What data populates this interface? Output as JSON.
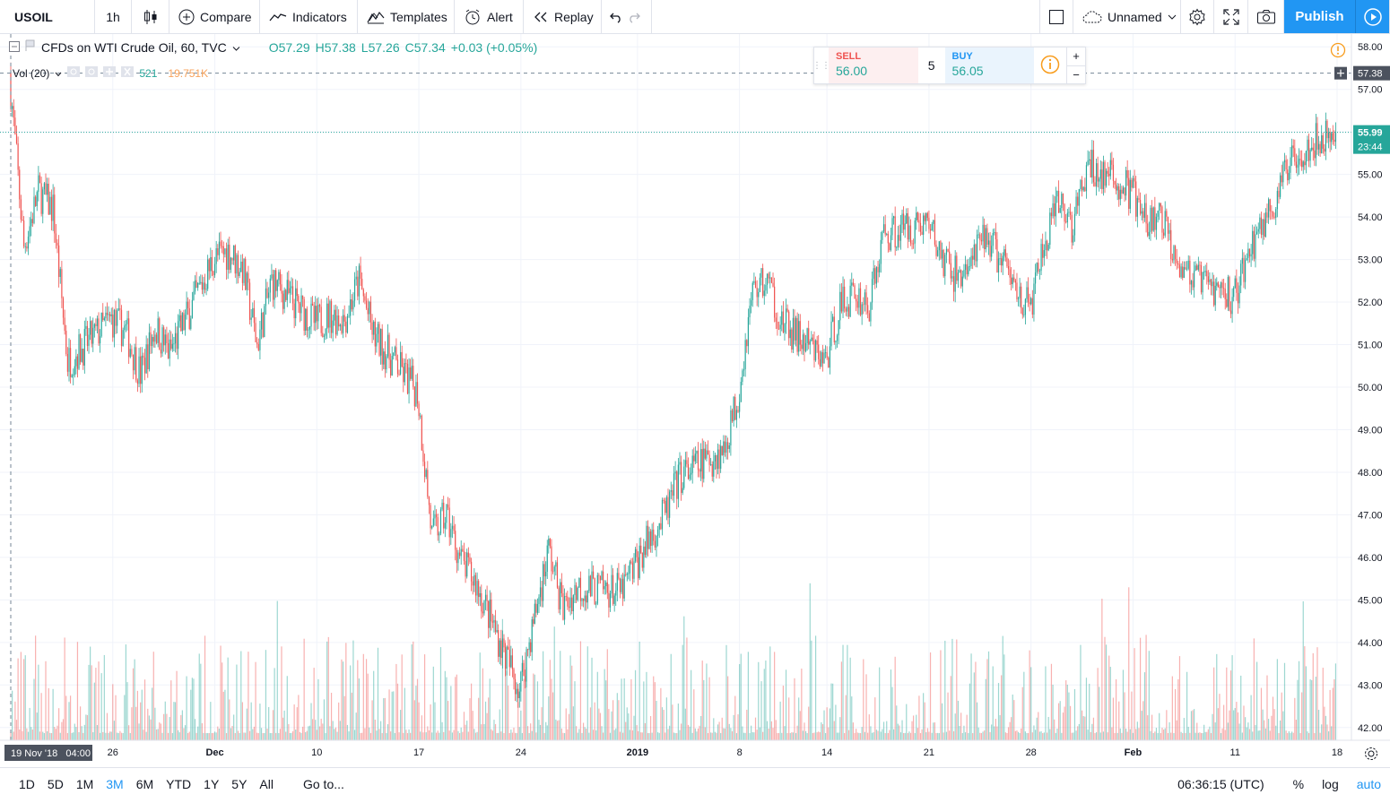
{
  "toolbar": {
    "symbol": "USOIL",
    "interval": "1h",
    "compare": "Compare",
    "indicators": "Indicators",
    "templates": "Templates",
    "alert": "Alert",
    "replay": "Replay",
    "layout_name": "Unnamed",
    "publish": "Publish"
  },
  "legend": {
    "title": "CFDs on WTI Crude Oil, 60, TVC",
    "open": "O57.29",
    "high": "H57.38",
    "low": "L57.26",
    "close": "C57.34",
    "change": "+0.03 (+0.05%)"
  },
  "volume_legend": {
    "name": "Vol (20)",
    "value1": "521",
    "value2": "19.751K"
  },
  "trade_panel": {
    "sell_label": "SELL",
    "sell_price": "56.00",
    "quantity": "5",
    "buy_label": "BUY",
    "buy_price": "56.05",
    "plus": "+",
    "minus": "−"
  },
  "price_axis": {
    "ticks": [
      "58.00",
      "57.00",
      "56.00",
      "55.00",
      "54.00",
      "53.00",
      "52.00",
      "51.00",
      "50.00",
      "49.00",
      "48.00",
      "47.00",
      "46.00",
      "45.00",
      "44.00",
      "43.00",
      "42.00"
    ],
    "crosshair_label": "57.38",
    "last_price_label": "55.99",
    "countdown_label": "23:44"
  },
  "time_axis": {
    "ticks": [
      "26",
      "Dec",
      "10",
      "17",
      "24",
      "2019",
      "8",
      "14",
      "21",
      "28",
      "Feb",
      "11",
      "18"
    ],
    "crosshair_label": "19 Nov '18   04:00"
  },
  "bottom_bar": {
    "ranges": [
      "1D",
      "5D",
      "1M",
      "3M",
      "6M",
      "YTD",
      "1Y",
      "5Y",
      "All"
    ],
    "active_range": "3M",
    "goto": "Go to...",
    "clock": "06:36:15 (UTC)",
    "percent": "%",
    "log": "log",
    "auto": "auto"
  },
  "colors": {
    "up": "#26a69a",
    "down": "#ef5350",
    "accent": "#2196f3",
    "grid": "#f0f3fa"
  },
  "chart_data": {
    "type": "candlestick",
    "title": "CFDs on WTI Crude Oil, 60, TVC",
    "interval": "60",
    "ylim": [
      41.7,
      58.3
    ],
    "x_labels": [
      "26",
      "Dec",
      "10",
      "17",
      "24",
      "2019",
      "8",
      "14",
      "21",
      "28",
      "Feb",
      "11",
      "18"
    ],
    "approx_close_path": [
      {
        "date": "2018-11-19",
        "price": 57.4
      },
      {
        "date": "2018-11-20",
        "price": 53.3
      },
      {
        "date": "2018-11-21",
        "price": 54.6
      },
      {
        "date": "2018-11-22",
        "price": 54.2
      },
      {
        "date": "2018-11-23",
        "price": 50.6
      },
      {
        "date": "2018-11-26",
        "price": 51.6
      },
      {
        "date": "2018-11-27",
        "price": 51.3
      },
      {
        "date": "2018-11-28",
        "price": 50.3
      },
      {
        "date": "2018-11-29",
        "price": 51.4
      },
      {
        "date": "2018-11-30",
        "price": 50.8
      },
      {
        "date": "2018-12-03",
        "price": 53.0
      },
      {
        "date": "2018-12-04",
        "price": 53.2
      },
      {
        "date": "2018-12-05",
        "price": 52.8
      },
      {
        "date": "2018-12-06",
        "price": 51.0
      },
      {
        "date": "2018-12-07",
        "price": 52.5
      },
      {
        "date": "2018-12-10",
        "price": 51.5
      },
      {
        "date": "2018-12-11",
        "price": 51.7
      },
      {
        "date": "2018-12-12",
        "price": 51.6
      },
      {
        "date": "2018-12-13",
        "price": 52.5
      },
      {
        "date": "2018-12-14",
        "price": 51.2
      },
      {
        "date": "2018-12-17",
        "price": 49.9
      },
      {
        "date": "2018-12-18",
        "price": 46.5
      },
      {
        "date": "2018-12-19",
        "price": 47.0
      },
      {
        "date": "2018-12-20",
        "price": 45.9
      },
      {
        "date": "2018-12-21",
        "price": 45.4
      },
      {
        "date": "2018-12-24",
        "price": 42.9
      },
      {
        "date": "2018-12-26",
        "price": 46.2
      },
      {
        "date": "2018-12-27",
        "price": 44.8
      },
      {
        "date": "2018-12-28",
        "price": 45.3
      },
      {
        "date": "2018-12-31",
        "price": 45.2
      },
      {
        "date": "2019-01-02",
        "price": 46.5
      },
      {
        "date": "2019-01-03",
        "price": 47.0
      },
      {
        "date": "2019-01-04",
        "price": 47.9
      },
      {
        "date": "2019-01-07",
        "price": 48.5
      },
      {
        "date": "2019-01-08",
        "price": 49.8
      },
      {
        "date": "2019-01-09",
        "price": 52.3
      },
      {
        "date": "2019-01-10",
        "price": 52.5
      },
      {
        "date": "2019-01-11",
        "price": 51.5
      },
      {
        "date": "2019-01-14",
        "price": 50.6
      },
      {
        "date": "2019-01-15",
        "price": 51.9
      },
      {
        "date": "2019-01-16",
        "price": 52.2
      },
      {
        "date": "2019-01-17",
        "price": 51.9
      },
      {
        "date": "2019-01-18",
        "price": 53.6
      },
      {
        "date": "2019-01-21",
        "price": 53.9
      },
      {
        "date": "2019-01-22",
        "price": 53.0
      },
      {
        "date": "2019-01-23",
        "price": 52.6
      },
      {
        "date": "2019-01-24",
        "price": 52.9
      },
      {
        "date": "2019-01-25",
        "price": 53.6
      },
      {
        "date": "2019-01-28",
        "price": 51.8
      },
      {
        "date": "2019-01-29",
        "price": 53.3
      },
      {
        "date": "2019-01-30",
        "price": 54.3
      },
      {
        "date": "2019-01-31",
        "price": 53.8
      },
      {
        "date": "2019-02-01",
        "price": 55.2
      },
      {
        "date": "2019-02-04",
        "price": 54.6
      },
      {
        "date": "2019-02-05",
        "price": 53.8
      },
      {
        "date": "2019-02-06",
        "price": 54.0
      },
      {
        "date": "2019-02-07",
        "price": 53.2
      },
      {
        "date": "2019-02-08",
        "price": 52.6
      },
      {
        "date": "2019-02-11",
        "price": 52.1
      },
      {
        "date": "2019-02-12",
        "price": 53.1
      },
      {
        "date": "2019-02-13",
        "price": 53.9
      },
      {
        "date": "2019-02-14",
        "price": 54.4
      },
      {
        "date": "2019-02-15",
        "price": 55.5
      },
      {
        "date": "2019-02-18",
        "price": 55.99
      }
    ],
    "last_price": 55.99,
    "crosshair_price": 57.38,
    "volume_indicator": "Vol (20)"
  }
}
